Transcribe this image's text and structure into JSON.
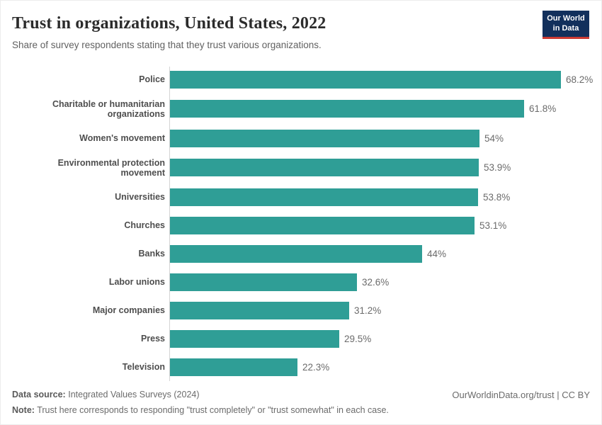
{
  "header": {
    "title": "Trust in organizations, United States, 2022",
    "subtitle": "Share of survey respondents stating that they trust various organizations.",
    "logo": {
      "line1": "Our World",
      "line2": "in Data"
    }
  },
  "chart_data": {
    "type": "bar",
    "orientation": "horizontal",
    "title": "Trust in organizations, United States, 2022",
    "xlabel": "",
    "ylabel": "",
    "unit": "%",
    "xlim": [
      0,
      68.2
    ],
    "grid": false,
    "legend": "none",
    "bar_color": "#2f9e96",
    "categories": [
      "Police",
      "Charitable or humanitarian organizations",
      "Women's movement",
      "Environmental protection movement",
      "Universities",
      "Churches",
      "Banks",
      "Labor unions",
      "Major companies",
      "Press",
      "Television"
    ],
    "values": [
      68.2,
      61.8,
      54,
      53.9,
      53.8,
      53.1,
      44,
      32.6,
      31.2,
      29.5,
      22.3
    ],
    "value_labels": [
      "68.2%",
      "61.8%",
      "54%",
      "53.9%",
      "53.8%",
      "53.1%",
      "44%",
      "32.6%",
      "31.2%",
      "29.5%",
      "22.3%"
    ]
  },
  "footer": {
    "data_source_label": "Data source:",
    "data_source": "Integrated Values Surveys (2024)",
    "note_label": "Note:",
    "note": "Trust here corresponds to responding \"trust completely\" or \"trust somewhat\" in each case.",
    "link": "OurWorldinData.org/trust | CC BY"
  }
}
